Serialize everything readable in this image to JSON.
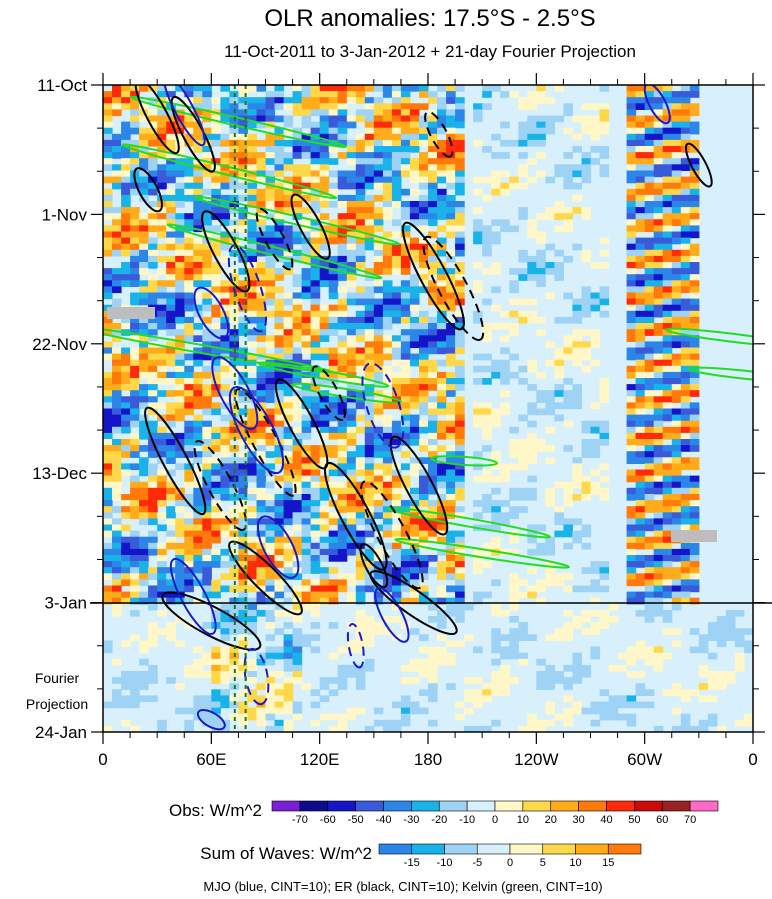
{
  "chart_data": {
    "type": "heatmap",
    "title": "OLR anomalies: 17.5°S - 2.5°S",
    "subtitle": "11-Oct-2011 to 3-Jan-2012 + 21-day Fourier Projection",
    "x_ticks": [
      "0",
      "60E",
      "120E",
      "180",
      "120W",
      "60W",
      "0"
    ],
    "x_tick_values": [
      0,
      60,
      120,
      180,
      240,
      300,
      360
    ],
    "xlim": [
      0,
      360
    ],
    "y_ticks": [
      "11-Oct",
      "1-Nov",
      "22-Nov",
      "13-Dec",
      "3-Jan",
      "24-Jan"
    ],
    "y_tick_days": [
      0,
      21,
      42,
      63,
      84,
      105
    ],
    "ylim_days": [
      0,
      105
    ],
    "observation_end_day": 84,
    "projection_label": [
      "Fourier",
      "Projection"
    ],
    "vertical_reference_lon": [
      73,
      79
    ],
    "obs_colorbar": {
      "label": "Obs: W/m^2",
      "levels": [
        "-70",
        "-60",
        "-50",
        "-40",
        "-30",
        "-20",
        "-10",
        "0",
        "10",
        "20",
        "30",
        "40",
        "50",
        "60",
        "70"
      ],
      "colors": [
        "#7a1fd6",
        "#0b0b8c",
        "#1414c8",
        "#3a5bd9",
        "#2b86e8",
        "#19b3ea",
        "#9fd3f5",
        "#d7f0fb",
        "#fff7c8",
        "#ffd84a",
        "#ffab1a",
        "#ff7a0a",
        "#ff2a0a",
        "#cc0a0a",
        "#992222",
        "#ff69c8"
      ]
    },
    "waves_colorbar": {
      "label": "Sum of Waves: W/m^2",
      "levels": [
        "-15",
        "-10",
        "-5",
        "0",
        "5",
        "10",
        "15"
      ],
      "colors": [
        "#2b86e8",
        "#19b3ea",
        "#9fd3f5",
        "#d7f0fb",
        "#fff7c8",
        "#ffd84a",
        "#ffab1a",
        "#ff7a0a"
      ]
    },
    "footer": "MJO (blue, CINT=10); ER (black, CINT=10); Kelvin (green, CINT=10)",
    "wave_colors": {
      "mjo": "#1a1ac8",
      "er": "#000000",
      "kelvin": "#22dd22"
    }
  }
}
